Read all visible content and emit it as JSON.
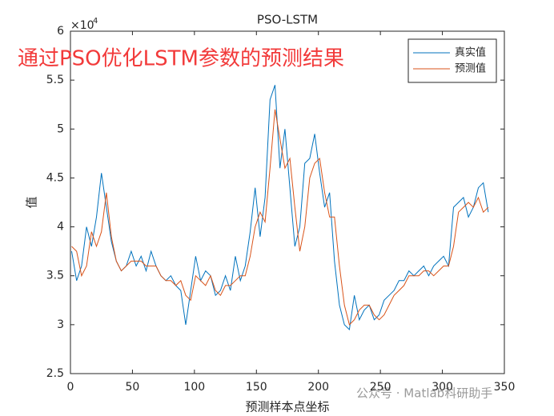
{
  "chart_data": {
    "type": "line",
    "title": "PSO-LSTM",
    "annotation": "通过PSO优化LSTM参数的预测结果",
    "watermark": "公众号 · Matlab科研助手",
    "x_label": "预测样本点坐标",
    "y_label": "值",
    "y_multiplier": {
      "base": "×10",
      "exponent": "4"
    },
    "x": [
      1,
      5,
      9,
      13,
      17,
      21,
      25,
      29,
      33,
      37,
      41,
      45,
      49,
      53,
      57,
      61,
      65,
      69,
      73,
      77,
      81,
      85,
      89,
      93,
      97,
      101,
      105,
      109,
      113,
      117,
      121,
      125,
      129,
      133,
      137,
      141,
      145,
      149,
      153,
      157,
      161,
      165,
      169,
      173,
      177,
      181,
      185,
      189,
      193,
      197,
      201,
      205,
      209,
      213,
      217,
      221,
      225,
      229,
      233,
      237,
      241,
      245,
      249,
      253,
      257,
      261,
      265,
      269,
      273,
      277,
      281,
      285,
      289,
      293,
      297,
      301,
      305,
      309,
      313,
      317,
      321,
      325,
      329,
      333,
      337
    ],
    "series": [
      {
        "name": "真实值",
        "color": "#0072bd",
        "values": [
          37500,
          34500,
          36000,
          40000,
          38000,
          41000,
          45500,
          42000,
          38500,
          36500,
          35500,
          36000,
          37500,
          36000,
          37000,
          35500,
          37500,
          36000,
          35000,
          34500,
          35000,
          34000,
          33500,
          30000,
          33500,
          37000,
          34500,
          35500,
          35000,
          33000,
          33500,
          35000,
          33500,
          37000,
          34500,
          36000,
          39500,
          44000,
          39000,
          43000,
          53000,
          54500,
          46000,
          50000,
          44000,
          38000,
          40000,
          46500,
          47000,
          49500,
          45500,
          42000,
          43500,
          36500,
          32000,
          30000,
          29500,
          33000,
          30500,
          31500,
          32000,
          30500,
          31000,
          32500,
          33000,
          33500,
          34500,
          34500,
          35500,
          35000,
          35500,
          36000,
          35000,
          36000,
          36500,
          37000,
          36000,
          42000,
          42500,
          43000,
          41000,
          42000,
          44000,
          44500,
          41500
        ]
      },
      {
        "name": "预测值",
        "color": "#d95319",
        "values": [
          38000,
          37500,
          35000,
          36000,
          39500,
          38000,
          39500,
          43500,
          39000,
          36500,
          35500,
          36000,
          36500,
          36500,
          36500,
          36000,
          36000,
          36000,
          35000,
          34500,
          34500,
          34000,
          34500,
          33000,
          32500,
          35000,
          34500,
          34000,
          35000,
          33500,
          33000,
          34000,
          34000,
          34500,
          35000,
          35000,
          37000,
          40000,
          41500,
          40500,
          46000,
          52000,
          49000,
          46000,
          47000,
          42000,
          37500,
          40000,
          45000,
          46500,
          47000,
          43500,
          41000,
          41000,
          36000,
          32000,
          30000,
          30500,
          31500,
          32000,
          32000,
          31000,
          30500,
          31000,
          32000,
          33000,
          33500,
          34000,
          35000,
          35000,
          35000,
          35500,
          35500,
          35000,
          35500,
          36000,
          36000,
          38000,
          41500,
          42000,
          42500,
          42000,
          43000,
          41500,
          42000
        ]
      }
    ],
    "xlim": [
      0,
      350
    ],
    "xticks": [
      0,
      50,
      100,
      150,
      200,
      250,
      300,
      350
    ],
    "ylim": [
      25000,
      60000
    ],
    "yticks": [
      {
        "value": 25000,
        "label": "2.5"
      },
      {
        "value": 30000,
        "label": "3"
      },
      {
        "value": 35000,
        "label": "3.5"
      },
      {
        "value": 40000,
        "label": "4"
      },
      {
        "value": 45000,
        "label": "4.5"
      },
      {
        "value": 50000,
        "label": "5"
      },
      {
        "value": 55000,
        "label": "5.5"
      },
      {
        "value": 60000,
        "label": "6"
      }
    ],
    "grid": false,
    "legend": "top-right"
  }
}
